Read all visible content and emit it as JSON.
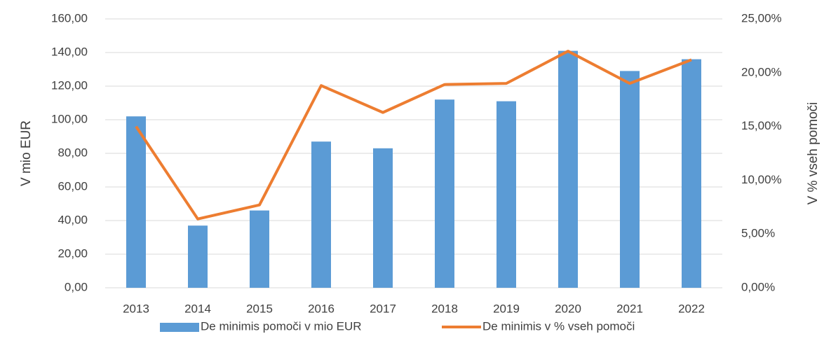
{
  "chart_data": {
    "type": "bar_line",
    "categories": [
      "2013",
      "2014",
      "2015",
      "2016",
      "2017",
      "2018",
      "2019",
      "2020",
      "2021",
      "2022"
    ],
    "series": [
      {
        "name": "De minimis pomoči v mio EUR",
        "color": "#5b9bd5",
        "type": "bar",
        "values": [
          102,
          37,
          46,
          87,
          83,
          112,
          111,
          141,
          129,
          136
        ]
      },
      {
        "name": "De minimis v % vseh pomoči",
        "color": "#ed7d31",
        "type": "line",
        "axis": "y2",
        "values": [
          15.0,
          6.4,
          7.7,
          18.8,
          16.3,
          18.9,
          19.0,
          22.0,
          19.0,
          21.2
        ]
      }
    ],
    "ylabel": "V mio EUR",
    "y2label": "V % vseh pomoči",
    "ylim": [
      0,
      160
    ],
    "yticks": [
      {
        "value": 0,
        "label": "0,00"
      },
      {
        "value": 20,
        "label": "20,00"
      },
      {
        "value": 40,
        "label": "40,00"
      },
      {
        "value": 60,
        "label": "60,00"
      },
      {
        "value": 80,
        "label": "80,00"
      },
      {
        "value": 100,
        "label": "100,00"
      },
      {
        "value": 120,
        "label": "120,00"
      },
      {
        "value": 140,
        "label": "140,00"
      },
      {
        "value": 160,
        "label": "160,00"
      }
    ],
    "y2lim": [
      0,
      25
    ],
    "y2ticks": [
      {
        "value": 0,
        "label": "0,00%"
      },
      {
        "value": 5,
        "label": "5,00%"
      },
      {
        "value": 10,
        "label": "10,00%"
      },
      {
        "value": 15,
        "label": "15,00%"
      },
      {
        "value": 20,
        "label": "20,00%"
      },
      {
        "value": 25,
        "label": "25,00%"
      }
    ],
    "grid": true,
    "legend": "bottom"
  }
}
